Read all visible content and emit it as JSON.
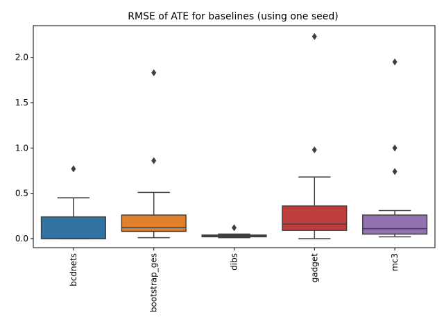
{
  "chart_data": {
    "type": "box",
    "title": "RMSE of ATE for baselines (using one seed)",
    "xlabel": "",
    "ylabel": "",
    "ylim": [
      -0.1,
      2.35
    ],
    "yticks": [
      "0.0",
      "0.5",
      "1.0",
      "1.5",
      "2.0"
    ],
    "grid": false,
    "categories": [
      "bcdnets",
      "bootstrap_ges",
      "dibs",
      "gadget",
      "mc3"
    ],
    "boxes": [
      {
        "name": "bcdnets",
        "whisker_low": 0.0,
        "q1": 0.0,
        "median": 0.0,
        "q3": 0.24,
        "whisker_high": 0.45,
        "outliers": [
          0.77
        ],
        "color": "#3274a1"
      },
      {
        "name": "bootstrap_ges",
        "whisker_low": 0.01,
        "q1": 0.08,
        "median": 0.12,
        "q3": 0.26,
        "whisker_high": 0.51,
        "outliers": [
          0.86,
          1.83
        ],
        "color": "#e1812c"
      },
      {
        "name": "dibs",
        "whisker_low": 0.01,
        "q1": 0.02,
        "median": 0.03,
        "q3": 0.04,
        "whisker_high": 0.05,
        "outliers": [
          0.12
        ],
        "color": "#3a923a"
      },
      {
        "name": "gadget",
        "whisker_low": 0.0,
        "q1": 0.09,
        "median": 0.16,
        "q3": 0.36,
        "whisker_high": 0.68,
        "outliers": [
          0.98,
          2.23
        ],
        "color": "#c03d3e"
      },
      {
        "name": "mc3",
        "whisker_low": 0.02,
        "q1": 0.05,
        "median": 0.11,
        "q3": 0.26,
        "whisker_high": 0.31,
        "outliers": [
          0.74,
          1.0,
          1.95
        ],
        "color": "#9372b2"
      }
    ]
  }
}
